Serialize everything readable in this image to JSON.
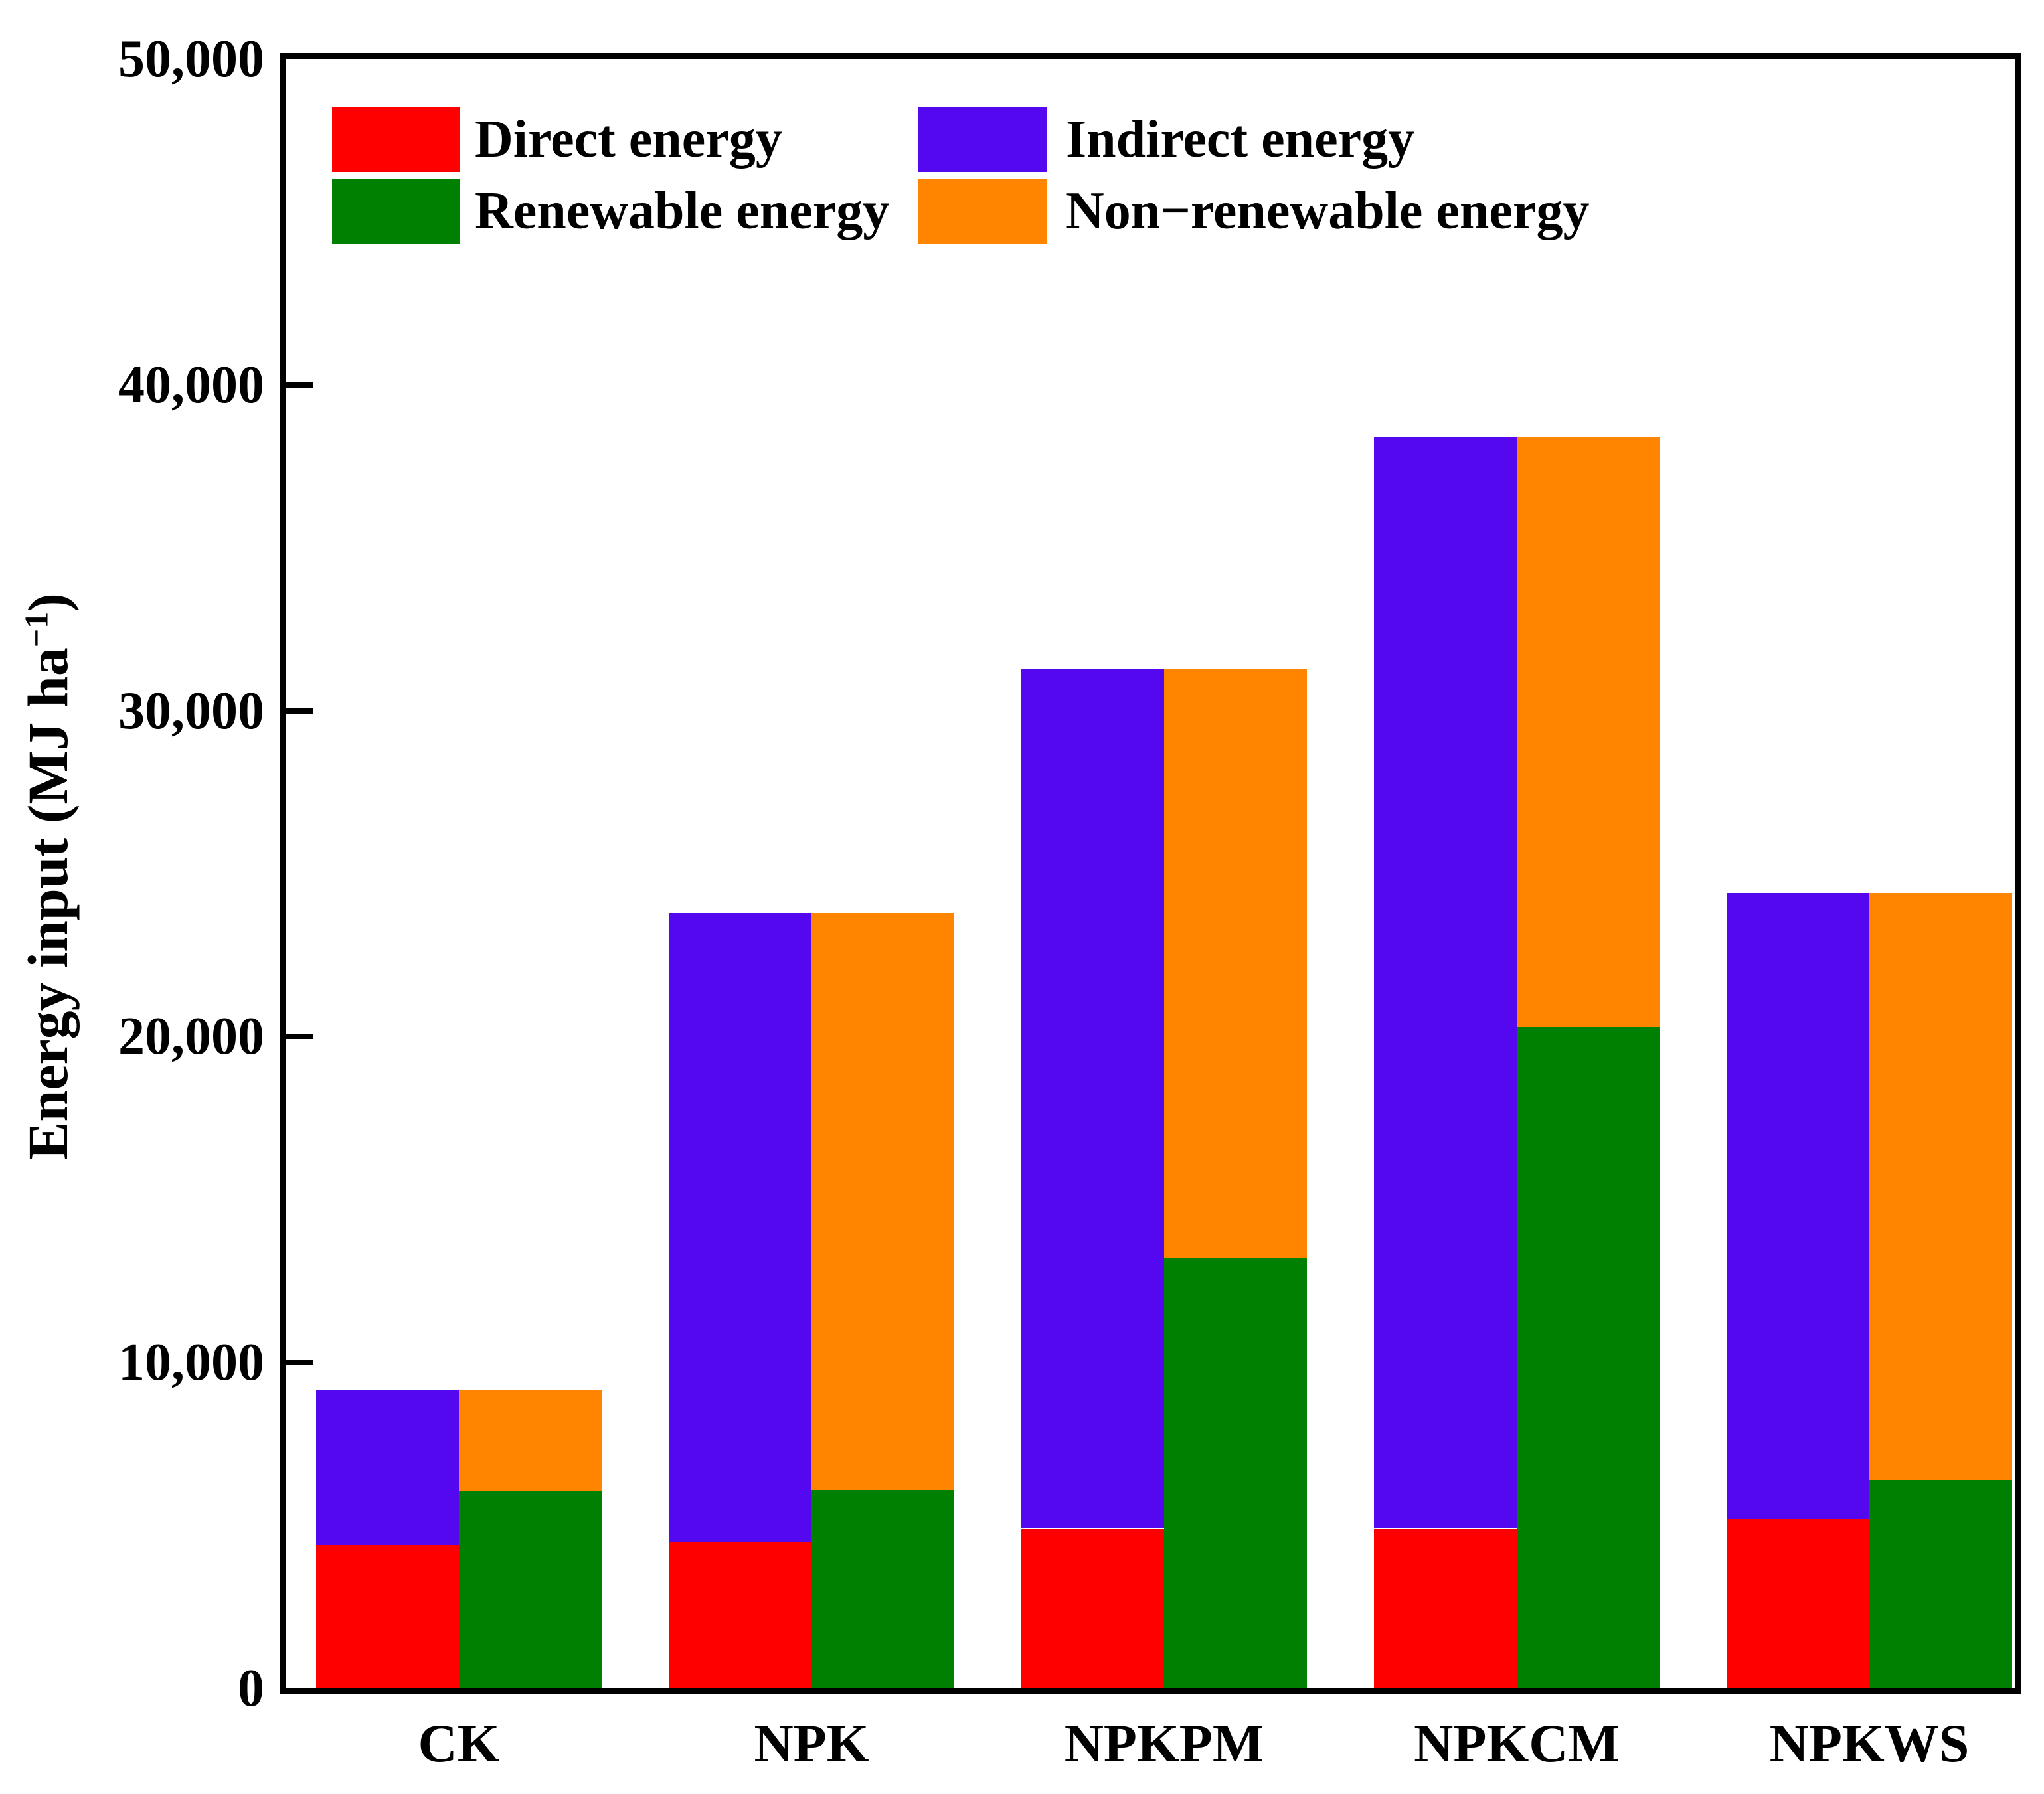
{
  "figure": {
    "background": "#ffffff",
    "frame_color": "#000000",
    "y_axis": {
      "label_pre": "Energy input (MJ ha",
      "label_sup": "−1",
      "label_post": ")",
      "tick_values": [
        0,
        10000,
        20000,
        30000,
        40000,
        50000
      ],
      "tick_labels": [
        "0",
        "10,000",
        "20,000",
        "30,000",
        "40,000",
        "50,000"
      ]
    },
    "legend": [
      {
        "label": "Direct energy",
        "color": "#ff0000",
        "swatch": "red-swatch"
      },
      {
        "label": "Indirect energy",
        "color": "#5408f0",
        "swatch": "purple-swatch"
      },
      {
        "label": "Renewable energy",
        "color": "#008000",
        "swatch": "green-swatch"
      },
      {
        "label": "Non−renewable energy",
        "color": "#ff8400",
        "swatch": "orange-swatch"
      }
    ]
  },
  "chart_data": {
    "type": "bar",
    "subtype": "paired-stacked-columns",
    "title": "",
    "xlabel": "",
    "ylabel": "Energy input (MJ ha−1)",
    "ylim": [
      0,
      50000
    ],
    "grid": false,
    "legend_position": "upper-left-inside",
    "categories": [
      "CK",
      "NPK",
      "NPKPM",
      "NPKCM",
      "NPKWS"
    ],
    "series": [
      {
        "name": "Direct energy",
        "stack": "left",
        "color": "#ff0000",
        "values": [
          4400,
          4500,
          4900,
          4900,
          5200
        ]
      },
      {
        "name": "Indirect energy",
        "stack": "left",
        "color": "#5408f0",
        "values": [
          4750,
          19300,
          26400,
          33500,
          19200
        ]
      },
      {
        "name": "Renewable energy",
        "stack": "right",
        "color": "#008000",
        "values": [
          6050,
          6100,
          13200,
          20300,
          6400
        ]
      },
      {
        "name": "Non−renewable energy",
        "stack": "right",
        "color": "#ff8400",
        "values": [
          3100,
          17700,
          18100,
          18100,
          18000
        ]
      }
    ],
    "totals": [
      9150,
      23800,
      31300,
      38400,
      24400
    ]
  }
}
